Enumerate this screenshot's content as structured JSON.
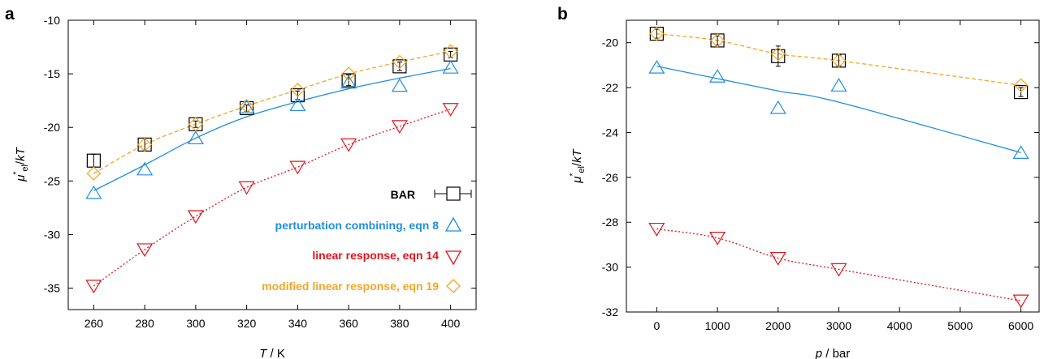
{
  "chart_data": [
    {
      "panel_label": "a",
      "type": "line",
      "xlabel": "T / K",
      "ylabel": "μ*el/kT",
      "xlim": [
        250,
        410
      ],
      "ylim": [
        -37,
        -10
      ],
      "xticks": [
        260,
        280,
        300,
        320,
        340,
        360,
        380,
        400
      ],
      "yticks": [
        -35,
        -30,
        -25,
        -20,
        -15,
        -10
      ],
      "legend_position": "bottom-right",
      "series": [
        {
          "name": "BAR",
          "color": "#000000",
          "marker": "square-errorbar",
          "line": "none",
          "x": [
            260,
            280,
            300,
            320,
            340,
            360,
            380,
            400
          ],
          "y": [
            -23.1,
            -21.6,
            -19.7,
            -18.2,
            -17.0,
            -15.6,
            -14.3,
            -13.2
          ],
          "yerr": [
            0.6,
            0.6,
            0.3,
            0.3,
            0.4,
            0.5,
            0.4,
            0.3
          ]
        },
        {
          "name": "perturbation combining, eqn 8",
          "color": "#1f8fe0",
          "marker": "triangle-up",
          "line": "solid",
          "x": [
            260,
            280,
            300,
            320,
            340,
            360,
            380,
            400
          ],
          "y": [
            -26.1,
            -23.9,
            -21.0,
            -18.1,
            -17.9,
            -15.8,
            -16.1,
            -14.4
          ],
          "fit": [
            -25.9,
            -23.5,
            -21.0,
            -19.0,
            -17.6,
            -16.4,
            -15.4,
            -14.5
          ]
        },
        {
          "name": "linear response, eqn 14",
          "color": "#e3141c",
          "marker": "triangle-down",
          "line": "dotted",
          "x": [
            260,
            280,
            300,
            320,
            340,
            360,
            380,
            400
          ],
          "y": [
            -34.8,
            -31.4,
            -28.3,
            -25.6,
            -23.7,
            -21.6,
            -19.9,
            -18.3
          ]
        },
        {
          "name": "modified linear response, eqn 19",
          "color": "#f5a623",
          "marker": "diamond",
          "line": "dashed",
          "x": [
            260,
            280,
            300,
            320,
            340,
            360,
            380,
            400
          ],
          "y": [
            -24.3,
            -21.6,
            -19.7,
            -18.0,
            -16.5,
            -15.0,
            -13.9,
            -12.9
          ]
        }
      ]
    },
    {
      "panel_label": "b",
      "type": "line",
      "xlabel": "p / bar",
      "ylabel": "μ*el/kT",
      "xlim": [
        -500,
        6300
      ],
      "ylim": [
        -32,
        -19
      ],
      "xticks": [
        0,
        1000,
        2000,
        3000,
        4000,
        5000,
        6000
      ],
      "yticks": [
        -32,
        -30,
        -28,
        -26,
        -24,
        -22,
        -20
      ],
      "series": [
        {
          "name": "BAR",
          "color": "#000000",
          "marker": "square-errorbar",
          "line": "none",
          "x": [
            0,
            1000,
            2000,
            3000,
            6000
          ],
          "y": [
            -19.6,
            -19.9,
            -20.6,
            -20.8,
            -22.2
          ],
          "yerr": [
            0.2,
            0.2,
            0.45,
            0.25,
            0.2
          ]
        },
        {
          "name": "perturbation combining, eqn 8",
          "color": "#1f8fe0",
          "marker": "triangle-up",
          "line": "solid",
          "x": [
            0,
            1000,
            2000,
            3000,
            6000
          ],
          "y": [
            -21.1,
            -21.5,
            -22.9,
            -21.9,
            -24.9
          ],
          "fit": [
            -21.05,
            -21.6,
            -22.15,
            -22.65,
            -24.9
          ]
        },
        {
          "name": "linear response, eqn 14",
          "color": "#e3141c",
          "marker": "triangle-down",
          "line": "dotted",
          "x": [
            0,
            1000,
            2000,
            3000,
            6000
          ],
          "y": [
            -28.3,
            -28.7,
            -29.6,
            -30.1,
            -31.5
          ]
        },
        {
          "name": "modified linear response, eqn 19",
          "color": "#f5a623",
          "marker": "diamond",
          "line": "dashed",
          "x": [
            0,
            1000,
            2000,
            3000,
            6000
          ],
          "y": [
            -19.6,
            -19.9,
            -20.5,
            -20.8,
            -21.9
          ]
        }
      ]
    }
  ]
}
